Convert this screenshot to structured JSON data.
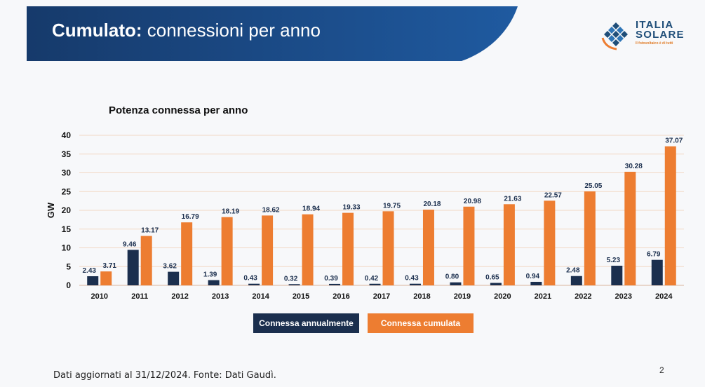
{
  "slide": {
    "title_bold": "Cumulato:",
    "title_rest": " connessioni per anno",
    "page_number": "2",
    "footer": "Dati aggiornati al 31/12/2024. Fonte: Dati Gaudì."
  },
  "logo": {
    "line1": "ITALIA",
    "line2": "SOLARE",
    "tagline": "Il fotovoltaico è di tutti"
  },
  "colors": {
    "banner": "#1f4e8c",
    "annual": "#1b2f4e",
    "cumulative": "#ed7d31",
    "grid": "#f2d7c4"
  },
  "chart_data": {
    "type": "bar",
    "title": "Potenza connessa per anno",
    "xlabel": "",
    "ylabel": "GW",
    "ylim": [
      0,
      40
    ],
    "yticks": [
      0,
      5,
      10,
      15,
      20,
      25,
      30,
      35,
      40
    ],
    "legend_position": "bottom",
    "categories": [
      "2010",
      "2011",
      "2012",
      "2013",
      "2014",
      "2015",
      "2016",
      "2017",
      "2018",
      "2019",
      "2020",
      "2021",
      "2022",
      "2023",
      "2024"
    ],
    "series": [
      {
        "name": "Connessa annualmente",
        "values": [
          2.43,
          9.46,
          3.62,
          1.39,
          0.43,
          0.32,
          0.39,
          0.42,
          0.43,
          0.8,
          0.65,
          0.94,
          2.48,
          5.23,
          6.79
        ],
        "labels": [
          "2.43",
          "9.46",
          "3.62",
          "1.39",
          "0.43",
          "0.32",
          "0.39",
          "0.42",
          "0.43",
          "0.80",
          "0.65",
          "0.94",
          "2.48",
          "5.23",
          "6.79"
        ]
      },
      {
        "name": "Connessa cumulata",
        "values": [
          3.71,
          13.17,
          16.79,
          18.19,
          18.62,
          18.94,
          19.33,
          19.75,
          20.18,
          20.98,
          21.63,
          22.57,
          25.05,
          30.28,
          37.07
        ],
        "labels": [
          "3.71",
          "13.17",
          "16.79",
          "18.19",
          "18.62",
          "18.94",
          "19.33",
          "19.75",
          "20.18",
          "20.98",
          "21.63",
          "22.57",
          "25.05",
          "30.28",
          "37.07"
        ]
      }
    ]
  }
}
